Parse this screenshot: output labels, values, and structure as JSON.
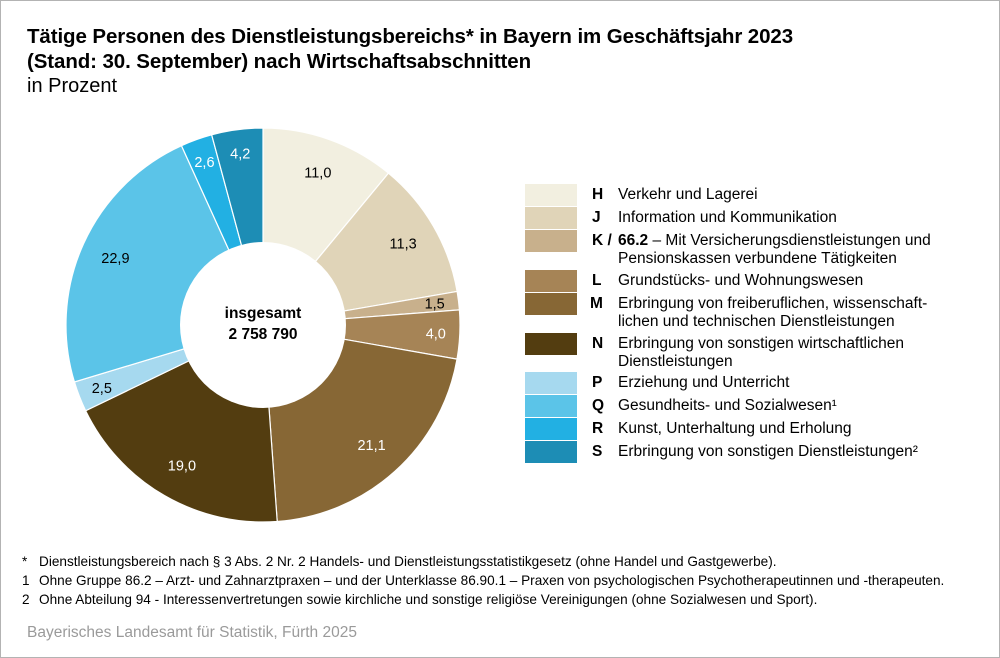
{
  "header": {
    "title_line1": "Tätige Personen des Dienstleistungsbereichs* in Bayern im Geschäftsjahr 2023",
    "title_line2": "(Stand: 30. September) nach Wirtschaftsabschnitten",
    "subtitle": "in Prozent"
  },
  "center_label": {
    "line1": "insgesamt",
    "line2": "2 758 790"
  },
  "chart_data": {
    "type": "pie",
    "variant": "donut",
    "title": "Tätige Personen des Dienstleistungsbereichs* in Bayern im Geschäftsjahr 2023 (Stand: 30. September) nach Wirtschaftsabschnitten",
    "unit": "Prozent",
    "total": 2758790,
    "start": "12 o'clock, clockwise",
    "legend_position": "right",
    "slices": [
      {
        "code": "H",
        "label": "Verkehr und Lagerei",
        "value": 11.0,
        "value_label": "11,0",
        "color": "#f2efe0",
        "label_color": "#000000"
      },
      {
        "code": "J",
        "label": "Information und Kommunikation",
        "value": 11.3,
        "value_label": "11,3",
        "color": "#e0d4b8",
        "label_color": "#000000"
      },
      {
        "code": "K / 66.2",
        "label": "Mit Versicherungsdienstleistungen und Pensionskassen verbundene Tätigkeiten",
        "value": 1.5,
        "value_label": "1,5",
        "color": "#c8b08c",
        "label_color": "#000000"
      },
      {
        "code": "L",
        "label": "Grundstücks- und Wohnungswesen",
        "value": 4.0,
        "value_label": "4,0",
        "color": "#a68456",
        "label_color": "#ffffff"
      },
      {
        "code": "M",
        "label": "Erbringung von freiberuflichen, wissenschaftlichen und technischen Dienstleistungen",
        "value": 21.1,
        "value_label": "21,1",
        "color": "#876735",
        "label_color": "#ffffff"
      },
      {
        "code": "N",
        "label": "Erbringung von sonstigen wirtschaftlichen Dienstleistungen",
        "value": 19.0,
        "value_label": "19,0",
        "color": "#533d10",
        "label_color": "#ffffff"
      },
      {
        "code": "P",
        "label": "Erziehung und Unterricht",
        "value": 2.5,
        "value_label": "2,5",
        "color": "#a6d9ef",
        "label_color": "#000000"
      },
      {
        "code": "Q",
        "label": "Gesundheits- und Sozialwesen¹",
        "value": 22.9,
        "value_label": "22,9",
        "color": "#5bc4e8",
        "label_color": "#000000"
      },
      {
        "code": "R",
        "label": "Kunst, Unterhaltung und Erholung",
        "value": 2.6,
        "value_label": "2,6",
        "color": "#22b0e3",
        "label_color": "#ffffff"
      },
      {
        "code": "S",
        "label": "Erbringung von sonstigen Dienstleistungen²",
        "value": 4.2,
        "value_label": "4,2",
        "color": "#1d8db5",
        "label_color": "#ffffff"
      }
    ]
  },
  "legend": {
    "items": [
      {
        "code": "H",
        "lines": [
          "Verkehr und Lagerei"
        ]
      },
      {
        "code": "J",
        "lines": [
          "Information und Kommunikation"
        ]
      },
      {
        "code": "K /",
        "code_bold_prefix": "66.2",
        "lines": [
          " – Mit Versicherungsdienstleistungen und",
          "Pensionskassen verbundene Tätigkeiten"
        ]
      },
      {
        "code": "L",
        "lines": [
          "Grundstücks- und Wohnungswesen"
        ]
      },
      {
        "code": "M",
        "lines": [
          "Erbringung von freiberuflichen, wissenschaft-",
          "lichen und technischen Dienstleistungen"
        ]
      },
      {
        "code": "N",
        "lines": [
          "Erbringung von sonstigen wirtschaftlichen",
          "Dienstleistungen"
        ]
      },
      {
        "code": "P",
        "lines": [
          "Erziehung und Unterricht"
        ]
      },
      {
        "code": "Q",
        "lines": [
          "Gesundheits- und Sozialwesen¹"
        ]
      },
      {
        "code": "R",
        "lines": [
          "Kunst, Unterhaltung und Erholung"
        ]
      },
      {
        "code": "S",
        "lines": [
          "Erbringung von sonstigen Dienstleistungen²"
        ]
      }
    ]
  },
  "footnotes": [
    {
      "mark": "*",
      "text": "Dienstleistungsbereich nach § 3 Abs. 2 Nr. 2 Handels- und Dienstleistungsstatistikgesetz (ohne Handel und Gastgewerbe)."
    },
    {
      "mark": "1",
      "text": "Ohne Gruppe 86.2 – Arzt- und Zahnarztpraxen – und der Unterklasse 86.90.1 – Praxen von psychologischen Psychotherapeutinnen und -therapeuten."
    },
    {
      "mark": "2",
      "text": "Ohne Abteilung 94 - Interessenvertretungen sowie kirchliche und sonstige religiöse Vereinigungen (ohne Sozialwesen und Sport)."
    }
  ],
  "source": "Bayerisches Landesamt für Statistik, Fürth 2025"
}
